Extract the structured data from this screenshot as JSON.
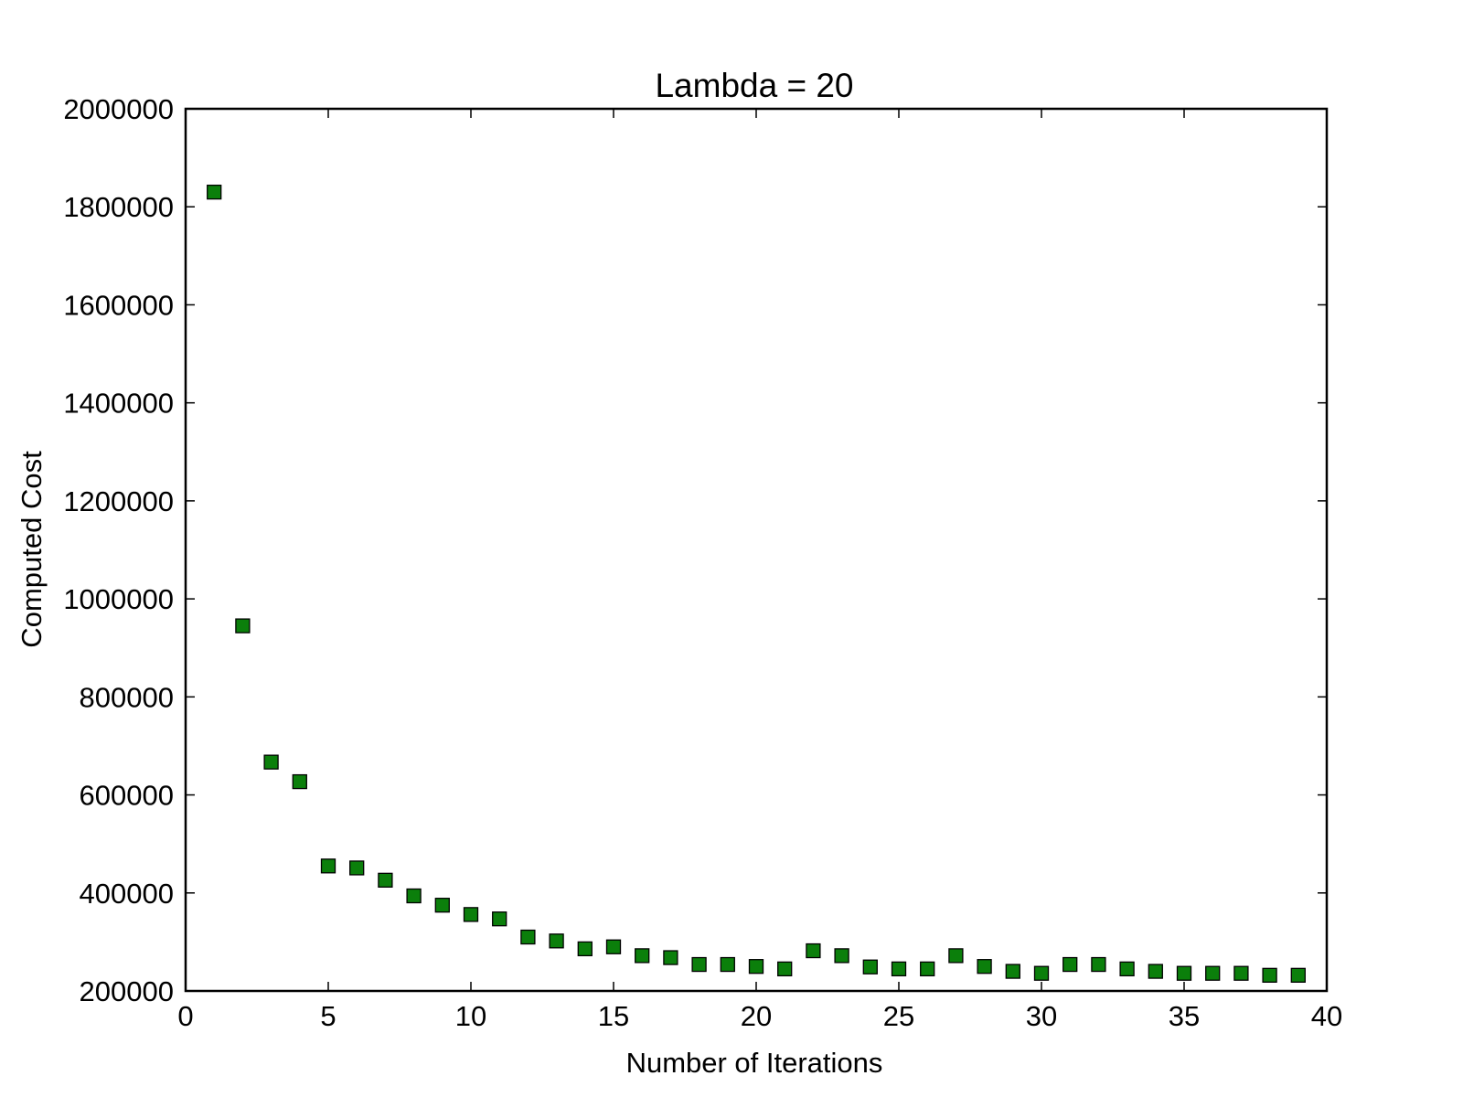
{
  "chart_data": {
    "type": "scatter",
    "title": "Lambda = 20",
    "xlabel": "Number of Iterations",
    "ylabel": "Computed Cost",
    "xlim": [
      0,
      40
    ],
    "ylim": [
      200000,
      2000000
    ],
    "x_ticks": [
      0,
      5,
      10,
      15,
      20,
      25,
      30,
      35,
      40
    ],
    "x_tick_labels": [
      "0",
      "5",
      "10",
      "15",
      "20",
      "25",
      "30",
      "35",
      "40"
    ],
    "y_ticks": [
      200000,
      400000,
      600000,
      800000,
      1000000,
      1200000,
      1400000,
      1600000,
      1800000,
      2000000
    ],
    "y_tick_labels": [
      "200000",
      "400000",
      "600000",
      "800000",
      "1000000",
      "1200000",
      "1400000",
      "1600000",
      "1800000",
      "2000000"
    ],
    "grid": false,
    "marker": "square",
    "series": [
      {
        "color": "#0b7f0b",
        "x": [
          1,
          2,
          3,
          4,
          5,
          6,
          7,
          8,
          9,
          10,
          11,
          12,
          13,
          14,
          15,
          16,
          17,
          18,
          19,
          20,
          21,
          22,
          23,
          24,
          25,
          26,
          27,
          28,
          29,
          30,
          31,
          32,
          33,
          34,
          35,
          36,
          37,
          38,
          39
        ],
        "y": [
          1830000,
          945000,
          667000,
          627000,
          455000,
          451000,
          426000,
          394000,
          375000,
          356000,
          347000,
          310000,
          302000,
          286000,
          290000,
          272000,
          268000,
          254000,
          254000,
          250000,
          245000,
          282000,
          272000,
          249000,
          245000,
          245000,
          272000,
          250000,
          240000,
          236000,
          254000,
          254000,
          245000,
          240000,
          236000,
          236000,
          236000,
          232000,
          232000
        ]
      }
    ]
  }
}
